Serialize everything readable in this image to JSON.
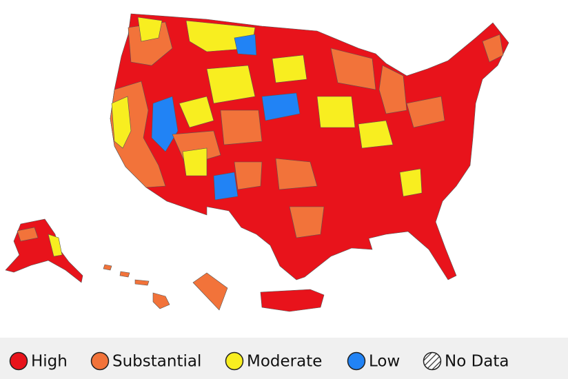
{
  "legend": {
    "items": [
      {
        "label": "High",
        "color": "#e8131b"
      },
      {
        "label": "Substantial",
        "color": "#f2733a"
      },
      {
        "label": "Moderate",
        "color": "#f8ee20"
      },
      {
        "label": "Low",
        "color": "#2183f5"
      },
      {
        "label": "No Data",
        "color": "#ffffff"
      }
    ]
  }
}
